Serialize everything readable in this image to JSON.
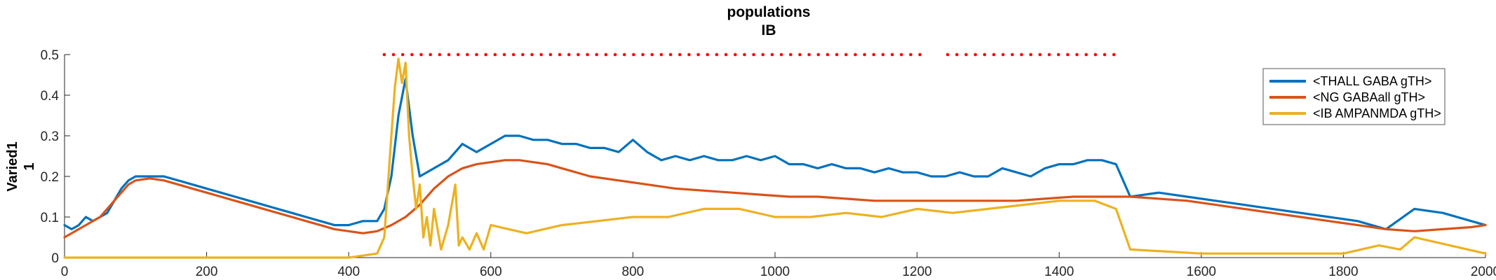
{
  "chart_data": {
    "type": "line",
    "title": "populations",
    "subtitle": "IB",
    "ylabel": "Varied1",
    "ylabel2": "1",
    "xlabel": "",
    "xlim": [
      0,
      2000
    ],
    "ylim": [
      0,
      0.5
    ],
    "x_ticks": [
      0,
      200,
      400,
      600,
      800,
      1000,
      1200,
      1400,
      1600,
      1800,
      2000
    ],
    "y_ticks": [
      0,
      0.1,
      0.2,
      0.3,
      0.4,
      0.5
    ],
    "y_tick_labels": [
      "0",
      "0.1",
      "0.2",
      "0.3",
      "0.4",
      "0.5"
    ],
    "grid": false,
    "legend_position": "top-right",
    "series": [
      {
        "name": "<THALL GABA gTH>",
        "color": "#0072BD",
        "x": [
          0,
          10,
          20,
          30,
          40,
          50,
          60,
          70,
          80,
          90,
          100,
          120,
          140,
          160,
          180,
          200,
          220,
          240,
          260,
          280,
          300,
          320,
          340,
          360,
          380,
          400,
          420,
          440,
          450,
          460,
          470,
          480,
          490,
          500,
          520,
          540,
          560,
          580,
          600,
          620,
          640,
          660,
          680,
          700,
          720,
          740,
          760,
          780,
          800,
          820,
          840,
          860,
          880,
          900,
          920,
          940,
          960,
          980,
          1000,
          1020,
          1040,
          1060,
          1080,
          1100,
          1120,
          1140,
          1160,
          1180,
          1200,
          1220,
          1240,
          1260,
          1280,
          1300,
          1320,
          1340,
          1360,
          1380,
          1400,
          1420,
          1440,
          1460,
          1480,
          1500,
          1540,
          1580,
          1620,
          1660,
          1700,
          1740,
          1780,
          1820,
          1860,
          1900,
          1940,
          1980,
          2000
        ],
        "y": [
          0.08,
          0.07,
          0.08,
          0.1,
          0.09,
          0.1,
          0.11,
          0.14,
          0.17,
          0.19,
          0.2,
          0.2,
          0.2,
          0.19,
          0.18,
          0.17,
          0.16,
          0.15,
          0.14,
          0.13,
          0.12,
          0.11,
          0.1,
          0.09,
          0.08,
          0.08,
          0.09,
          0.09,
          0.12,
          0.2,
          0.35,
          0.44,
          0.3,
          0.2,
          0.22,
          0.24,
          0.28,
          0.26,
          0.28,
          0.3,
          0.3,
          0.29,
          0.29,
          0.28,
          0.28,
          0.27,
          0.27,
          0.26,
          0.29,
          0.26,
          0.24,
          0.25,
          0.24,
          0.25,
          0.24,
          0.24,
          0.25,
          0.24,
          0.25,
          0.23,
          0.23,
          0.22,
          0.23,
          0.22,
          0.22,
          0.21,
          0.22,
          0.21,
          0.21,
          0.2,
          0.2,
          0.21,
          0.2,
          0.2,
          0.22,
          0.21,
          0.2,
          0.22,
          0.23,
          0.23,
          0.24,
          0.24,
          0.23,
          0.15,
          0.16,
          0.15,
          0.14,
          0.13,
          0.12,
          0.11,
          0.1,
          0.09,
          0.07,
          0.12,
          0.11,
          0.09,
          0.08
        ]
      },
      {
        "name": "<NG GABAall gTH>",
        "color": "#D95319",
        "x": [
          0,
          10,
          20,
          30,
          40,
          50,
          60,
          70,
          80,
          90,
          100,
          120,
          140,
          160,
          180,
          200,
          220,
          240,
          260,
          280,
          300,
          320,
          340,
          360,
          380,
          400,
          420,
          440,
          460,
          480,
          500,
          520,
          540,
          560,
          580,
          600,
          620,
          640,
          660,
          680,
          700,
          740,
          780,
          820,
          860,
          900,
          940,
          980,
          1020,
          1060,
          1100,
          1140,
          1180,
          1220,
          1260,
          1300,
          1340,
          1380,
          1420,
          1460,
          1500,
          1540,
          1580,
          1620,
          1660,
          1700,
          1740,
          1780,
          1820,
          1860,
          1900,
          1940,
          1980,
          2000
        ],
        "y": [
          0.05,
          0.06,
          0.07,
          0.08,
          0.09,
          0.1,
          0.12,
          0.14,
          0.16,
          0.18,
          0.19,
          0.195,
          0.19,
          0.18,
          0.17,
          0.16,
          0.15,
          0.14,
          0.13,
          0.12,
          0.11,
          0.1,
          0.09,
          0.08,
          0.07,
          0.065,
          0.06,
          0.065,
          0.08,
          0.1,
          0.13,
          0.17,
          0.2,
          0.22,
          0.23,
          0.235,
          0.24,
          0.24,
          0.235,
          0.23,
          0.22,
          0.2,
          0.19,
          0.18,
          0.17,
          0.165,
          0.16,
          0.155,
          0.15,
          0.15,
          0.145,
          0.14,
          0.14,
          0.14,
          0.14,
          0.14,
          0.14,
          0.145,
          0.15,
          0.15,
          0.15,
          0.145,
          0.14,
          0.13,
          0.12,
          0.11,
          0.1,
          0.09,
          0.08,
          0.07,
          0.065,
          0.07,
          0.075,
          0.08
        ]
      },
      {
        "name": "<IB AMPANMDA gTH>",
        "color": "#EDB120",
        "x": [
          0,
          100,
          200,
          300,
          400,
          440,
          450,
          460,
          465,
          470,
          475,
          480,
          485,
          490,
          495,
          500,
          505,
          510,
          515,
          520,
          530,
          540,
          550,
          555,
          560,
          570,
          580,
          590,
          600,
          650,
          700,
          750,
          800,
          850,
          900,
          950,
          1000,
          1050,
          1100,
          1150,
          1200,
          1250,
          1300,
          1350,
          1400,
          1450,
          1480,
          1500,
          1600,
          1700,
          1800,
          1850,
          1880,
          1900,
          1950,
          2000
        ],
        "y": [
          0,
          0,
          0,
          0,
          0,
          0.01,
          0.05,
          0.3,
          0.42,
          0.49,
          0.43,
          0.48,
          0.3,
          0.2,
          0.12,
          0.18,
          0.05,
          0.1,
          0.03,
          0.12,
          0.02,
          0.08,
          0.18,
          0.03,
          0.05,
          0.02,
          0.06,
          0.02,
          0.08,
          0.06,
          0.08,
          0.09,
          0.1,
          0.1,
          0.12,
          0.12,
          0.1,
          0.1,
          0.11,
          0.1,
          0.12,
          0.11,
          0.12,
          0.13,
          0.14,
          0.14,
          0.12,
          0.02,
          0.01,
          0.01,
          0.01,
          0.03,
          0.02,
          0.05,
          0.03,
          0.01
        ]
      }
    ],
    "markers": {
      "color": "#FF0000",
      "y": 0.5,
      "x_range": [
        450,
        1480
      ],
      "gap": [
        1205,
        1240
      ]
    }
  }
}
